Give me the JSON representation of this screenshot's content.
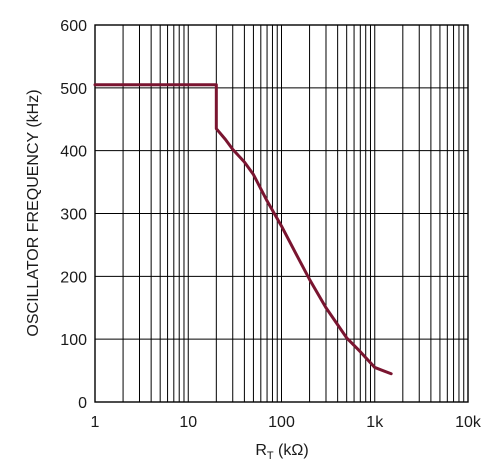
{
  "chart_data": {
    "type": "line",
    "x_scale": "log",
    "xlim": [
      1,
      10000
    ],
    "ylim": [
      0,
      600
    ],
    "x_ticks": [
      1,
      10,
      100,
      1000,
      10000
    ],
    "x_tick_labels": [
      "1",
      "10",
      "100",
      "1k",
      "10k"
    ],
    "y_ticks": [
      0,
      100,
      200,
      300,
      400,
      500,
      600
    ],
    "y_tick_labels": [
      "0",
      "100",
      "200",
      "300",
      "400",
      "500",
      "600"
    ],
    "xlabel": {
      "main": "R",
      "sub": "T",
      "rest": " (kΩ)"
    },
    "ylabel": "OSCILLATOR FREQUENCY (kHz)",
    "grid": true,
    "series": [
      {
        "color": "#7a1530",
        "x": [
          1,
          20,
          20,
          25,
          30,
          40,
          50,
          70,
          100,
          150,
          200,
          300,
          500,
          700,
          1000,
          1500
        ],
        "y": [
          505,
          505,
          435,
          418,
          402,
          382,
          362,
          320,
          280,
          230,
          195,
          150,
          102,
          80,
          55,
          45
        ]
      }
    ]
  }
}
